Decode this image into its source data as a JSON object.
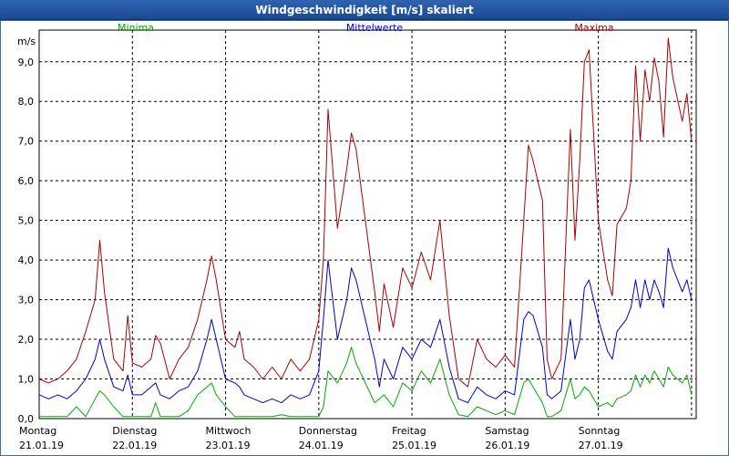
{
  "window": {
    "title": "Windgeschwindigkeit [m/s] skaliert"
  },
  "colors": {
    "minima": "#00aa00",
    "mittelwerte": "#0000cc",
    "maxima": "#aa0000",
    "grid": "#000000"
  },
  "chart_data": {
    "type": "line",
    "title": "Windgeschwindigkeit [m/s] skaliert",
    "ylabel": "m/s",
    "ylim": [
      0,
      9.8
    ],
    "yticks": [
      "0,0",
      "1,0",
      "2,0",
      "3,0",
      "4,0",
      "5,0",
      "6,0",
      "7,0",
      "8,0",
      "9,0"
    ],
    "xlim": [
      0,
      7.05
    ],
    "x_tick_positions": [
      0,
      1,
      2,
      3,
      4,
      5,
      6,
      7
    ],
    "days": [
      {
        "name": "Montag",
        "date": "21.01.19"
      },
      {
        "name": "Dienstag",
        "date": "22.01.19"
      },
      {
        "name": "Mittwoch",
        "date": "23.01.19"
      },
      {
        "name": "Donnerstag",
        "date": "24.01.19"
      },
      {
        "name": "Freitag",
        "date": "25.01.19"
      },
      {
        "name": "Samstag",
        "date": "26.01.19"
      },
      {
        "name": "Sonntag",
        "date": "27.01.19"
      }
    ],
    "legend": [
      "Minima",
      "Mittelwerte",
      "Maxima"
    ],
    "series": [
      {
        "name": "Maxima",
        "points": [
          [
            0,
            1.0
          ],
          [
            0.1,
            0.9
          ],
          [
            0.2,
            1.0
          ],
          [
            0.3,
            1.2
          ],
          [
            0.4,
            1.5
          ],
          [
            0.5,
            2.2
          ],
          [
            0.6,
            3.0
          ],
          [
            0.65,
            4.5
          ],
          [
            0.7,
            3.2
          ],
          [
            0.8,
            1.5
          ],
          [
            0.9,
            1.2
          ],
          [
            0.95,
            2.6
          ],
          [
            1.0,
            1.4
          ],
          [
            1.1,
            1.3
          ],
          [
            1.2,
            1.5
          ],
          [
            1.25,
            2.1
          ],
          [
            1.3,
            1.9
          ],
          [
            1.4,
            1.0
          ],
          [
            1.5,
            1.5
          ],
          [
            1.6,
            1.8
          ],
          [
            1.7,
            2.5
          ],
          [
            1.8,
            3.5
          ],
          [
            1.85,
            4.1
          ],
          [
            1.9,
            3.5
          ],
          [
            2.0,
            2.0
          ],
          [
            2.1,
            1.8
          ],
          [
            2.15,
            2.2
          ],
          [
            2.2,
            1.5
          ],
          [
            2.3,
            1.3
          ],
          [
            2.4,
            1.0
          ],
          [
            2.5,
            1.3
          ],
          [
            2.6,
            1.0
          ],
          [
            2.7,
            1.5
          ],
          [
            2.8,
            1.2
          ],
          [
            2.9,
            1.5
          ],
          [
            3.0,
            2.5
          ],
          [
            3.05,
            4.0
          ],
          [
            3.1,
            7.8
          ],
          [
            3.2,
            4.8
          ],
          [
            3.3,
            6.3
          ],
          [
            3.35,
            7.2
          ],
          [
            3.4,
            6.8
          ],
          [
            3.5,
            5.0
          ],
          [
            3.6,
            3.2
          ],
          [
            3.65,
            2.2
          ],
          [
            3.7,
            3.4
          ],
          [
            3.8,
            2.3
          ],
          [
            3.9,
            3.8
          ],
          [
            4.0,
            3.3
          ],
          [
            4.1,
            4.2
          ],
          [
            4.2,
            3.5
          ],
          [
            4.3,
            5.0
          ],
          [
            4.4,
            2.6
          ],
          [
            4.5,
            1.0
          ],
          [
            4.6,
            0.8
          ],
          [
            4.7,
            2.0
          ],
          [
            4.8,
            1.5
          ],
          [
            4.9,
            1.3
          ],
          [
            5.0,
            1.6
          ],
          [
            5.1,
            1.3
          ],
          [
            5.2,
            5.0
          ],
          [
            5.25,
            6.9
          ],
          [
            5.3,
            6.5
          ],
          [
            5.4,
            5.5
          ],
          [
            5.45,
            1.5
          ],
          [
            5.5,
            1.0
          ],
          [
            5.6,
            1.5
          ],
          [
            5.7,
            7.3
          ],
          [
            5.75,
            4.5
          ],
          [
            5.8,
            6.5
          ],
          [
            5.85,
            9.0
          ],
          [
            5.9,
            9.3
          ],
          [
            6.0,
            5.0
          ],
          [
            6.1,
            3.5
          ],
          [
            6.15,
            3.1
          ],
          [
            6.2,
            4.9
          ],
          [
            6.3,
            5.3
          ],
          [
            6.35,
            6.0
          ],
          [
            6.4,
            8.9
          ],
          [
            6.45,
            7.0
          ],
          [
            6.5,
            8.8
          ],
          [
            6.55,
            8.0
          ],
          [
            6.6,
            9.1
          ],
          [
            6.65,
            8.5
          ],
          [
            6.7,
            7.1
          ],
          [
            6.75,
            9.6
          ],
          [
            6.8,
            8.6
          ],
          [
            6.9,
            7.5
          ],
          [
            6.95,
            8.2
          ],
          [
            7.0,
            7.0
          ]
        ],
        "color": "#aa0000"
      },
      {
        "name": "Mittelwerte",
        "points": [
          [
            0,
            0.6
          ],
          [
            0.1,
            0.5
          ],
          [
            0.2,
            0.6
          ],
          [
            0.3,
            0.5
          ],
          [
            0.4,
            0.7
          ],
          [
            0.5,
            1.0
          ],
          [
            0.6,
            1.5
          ],
          [
            0.65,
            2.0
          ],
          [
            0.7,
            1.5
          ],
          [
            0.8,
            0.8
          ],
          [
            0.9,
            0.7
          ],
          [
            0.95,
            1.1
          ],
          [
            1.0,
            0.6
          ],
          [
            1.1,
            0.6
          ],
          [
            1.2,
            0.8
          ],
          [
            1.25,
            0.9
          ],
          [
            1.3,
            0.6
          ],
          [
            1.4,
            0.5
          ],
          [
            1.5,
            0.7
          ],
          [
            1.6,
            0.8
          ],
          [
            1.7,
            1.2
          ],
          [
            1.8,
            2.0
          ],
          [
            1.85,
            2.5
          ],
          [
            1.9,
            2.0
          ],
          [
            2.0,
            1.0
          ],
          [
            2.1,
            0.9
          ],
          [
            2.15,
            0.8
          ],
          [
            2.2,
            0.6
          ],
          [
            2.3,
            0.5
          ],
          [
            2.4,
            0.4
          ],
          [
            2.5,
            0.5
          ],
          [
            2.6,
            0.4
          ],
          [
            2.7,
            0.6
          ],
          [
            2.8,
            0.5
          ],
          [
            2.9,
            0.6
          ],
          [
            3.0,
            1.2
          ],
          [
            3.05,
            2.5
          ],
          [
            3.1,
            4.0
          ],
          [
            3.2,
            2.0
          ],
          [
            3.3,
            3.0
          ],
          [
            3.35,
            3.8
          ],
          [
            3.4,
            3.5
          ],
          [
            3.5,
            2.5
          ],
          [
            3.6,
            1.5
          ],
          [
            3.65,
            0.8
          ],
          [
            3.7,
            1.5
          ],
          [
            3.8,
            1.0
          ],
          [
            3.9,
            1.8
          ],
          [
            4.0,
            1.5
          ],
          [
            4.1,
            2.0
          ],
          [
            4.2,
            1.8
          ],
          [
            4.3,
            2.5
          ],
          [
            4.4,
            1.3
          ],
          [
            4.5,
            0.5
          ],
          [
            4.6,
            0.4
          ],
          [
            4.7,
            0.8
          ],
          [
            4.8,
            0.6
          ],
          [
            4.9,
            0.5
          ],
          [
            5.0,
            0.7
          ],
          [
            5.1,
            0.6
          ],
          [
            5.2,
            2.5
          ],
          [
            5.25,
            2.7
          ],
          [
            5.3,
            2.6
          ],
          [
            5.4,
            1.8
          ],
          [
            5.45,
            0.6
          ],
          [
            5.5,
            0.5
          ],
          [
            5.6,
            0.7
          ],
          [
            5.7,
            2.5
          ],
          [
            5.75,
            1.5
          ],
          [
            5.8,
            2.0
          ],
          [
            5.85,
            3.3
          ],
          [
            5.9,
            3.5
          ],
          [
            6.0,
            2.5
          ],
          [
            6.1,
            1.7
          ],
          [
            6.15,
            1.5
          ],
          [
            6.2,
            2.2
          ],
          [
            6.3,
            2.5
          ],
          [
            6.35,
            2.8
          ],
          [
            6.4,
            3.5
          ],
          [
            6.45,
            2.8
          ],
          [
            6.5,
            3.5
          ],
          [
            6.55,
            3.0
          ],
          [
            6.6,
            3.5
          ],
          [
            6.65,
            3.2
          ],
          [
            6.7,
            2.8
          ],
          [
            6.75,
            4.3
          ],
          [
            6.8,
            3.8
          ],
          [
            6.9,
            3.2
          ],
          [
            6.95,
            3.5
          ],
          [
            7.0,
            3.0
          ]
        ],
        "color": "#0000cc"
      },
      {
        "name": "Minima",
        "points": [
          [
            0,
            0.05
          ],
          [
            0.3,
            0.05
          ],
          [
            0.4,
            0.3
          ],
          [
            0.5,
            0.05
          ],
          [
            0.6,
            0.5
          ],
          [
            0.65,
            0.7
          ],
          [
            0.7,
            0.6
          ],
          [
            0.8,
            0.3
          ],
          [
            0.9,
            0.05
          ],
          [
            1.0,
            0.05
          ],
          [
            1.2,
            0.05
          ],
          [
            1.25,
            0.4
          ],
          [
            1.3,
            0.05
          ],
          [
            1.5,
            0.05
          ],
          [
            1.6,
            0.2
          ],
          [
            1.7,
            0.6
          ],
          [
            1.8,
            0.8
          ],
          [
            1.85,
            0.9
          ],
          [
            1.9,
            0.6
          ],
          [
            2.0,
            0.3
          ],
          [
            2.1,
            0.05
          ],
          [
            2.5,
            0.05
          ],
          [
            2.6,
            0.1
          ],
          [
            2.7,
            0.05
          ],
          [
            3.0,
            0.05
          ],
          [
            3.05,
            0.3
          ],
          [
            3.1,
            1.2
          ],
          [
            3.2,
            0.9
          ],
          [
            3.3,
            1.4
          ],
          [
            3.35,
            1.8
          ],
          [
            3.4,
            1.4
          ],
          [
            3.5,
            0.9
          ],
          [
            3.6,
            0.4
          ],
          [
            3.7,
            0.6
          ],
          [
            3.8,
            0.3
          ],
          [
            3.9,
            0.9
          ],
          [
            4.0,
            0.7
          ],
          [
            4.1,
            1.2
          ],
          [
            4.2,
            0.9
          ],
          [
            4.3,
            1.5
          ],
          [
            4.4,
            0.6
          ],
          [
            4.5,
            0.1
          ],
          [
            4.6,
            0.05
          ],
          [
            4.7,
            0.3
          ],
          [
            4.8,
            0.2
          ],
          [
            4.9,
            0.1
          ],
          [
            5.0,
            0.2
          ],
          [
            5.1,
            0.1
          ],
          [
            5.2,
            0.9
          ],
          [
            5.25,
            1.0
          ],
          [
            5.3,
            0.8
          ],
          [
            5.4,
            0.4
          ],
          [
            5.45,
            0.05
          ],
          [
            5.5,
            0.05
          ],
          [
            5.6,
            0.2
          ],
          [
            5.7,
            1.0
          ],
          [
            5.75,
            0.5
          ],
          [
            5.8,
            0.6
          ],
          [
            5.85,
            0.8
          ],
          [
            5.9,
            0.7
          ],
          [
            6.0,
            0.3
          ],
          [
            6.1,
            0.4
          ],
          [
            6.15,
            0.3
          ],
          [
            6.2,
            0.5
          ],
          [
            6.3,
            0.6
          ],
          [
            6.35,
            0.7
          ],
          [
            6.4,
            1.1
          ],
          [
            6.45,
            0.8
          ],
          [
            6.5,
            1.1
          ],
          [
            6.55,
            0.9
          ],
          [
            6.6,
            1.2
          ],
          [
            6.65,
            1.0
          ],
          [
            6.7,
            0.8
          ],
          [
            6.75,
            1.3
          ],
          [
            6.8,
            1.1
          ],
          [
            6.9,
            0.9
          ],
          [
            6.95,
            1.1
          ],
          [
            7.0,
            0.6
          ]
        ],
        "color": "#00aa00"
      }
    ]
  }
}
